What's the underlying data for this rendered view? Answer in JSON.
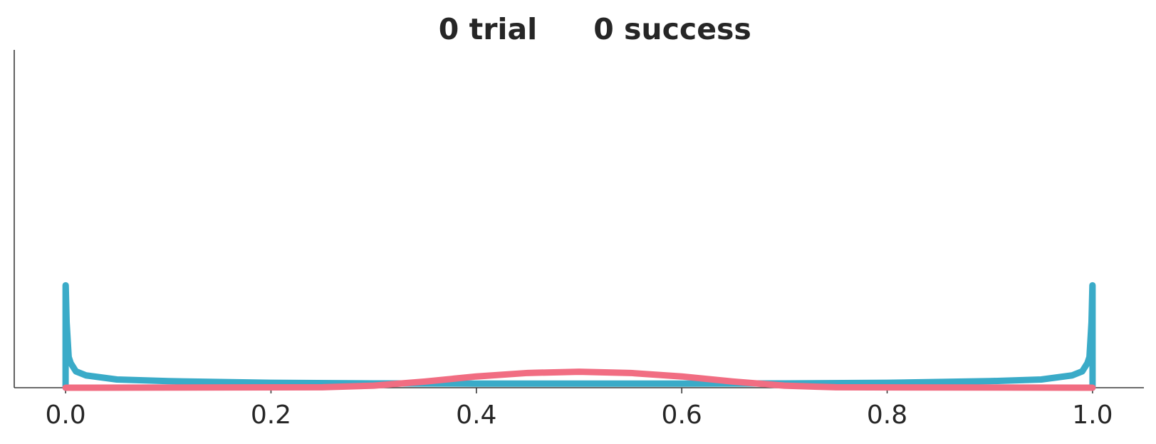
{
  "chart_data": {
    "type": "line",
    "title_parts": [
      "0 trial",
      "0 success"
    ],
    "xlabel": "",
    "ylabel": "",
    "xlim": [
      -0.05,
      1.05
    ],
    "ylim": [
      0,
      16.5
    ],
    "grid": false,
    "x_ticks": [
      0.0,
      0.2,
      0.4,
      0.6,
      0.8,
      1.0
    ],
    "x_tick_labels": [
      "0.0",
      "0.2",
      "0.4",
      "0.6",
      "0.8",
      "1.0"
    ],
    "series": [
      {
        "color": "#3aabc8",
        "distribution": "Beta(0.5, 0.5)",
        "x": [
          0.0,
          1e-05,
          0.0001,
          0.001,
          0.003,
          0.005,
          0.01,
          0.02,
          0.05,
          0.1,
          0.2,
          0.3,
          0.4,
          0.5,
          0.6,
          0.7,
          0.8,
          0.9,
          0.95,
          0.98,
          0.99,
          0.995,
          0.997,
          0.999,
          0.9999,
          0.99999,
          1.0
        ],
        "y": [
          0.0,
          5.0,
          5.0,
          3.2,
          1.5,
          1.2,
          0.8,
          0.6,
          0.4,
          0.32,
          0.24,
          0.21,
          0.2,
          0.2,
          0.2,
          0.21,
          0.24,
          0.32,
          0.4,
          0.6,
          0.8,
          1.2,
          1.5,
          3.2,
          5.0,
          5.0,
          0.0
        ]
      },
      {
        "color": "#f16d82",
        "distribution": "Beta(20, 20)",
        "x": [
          0.0,
          0.25,
          0.3,
          0.35,
          0.4,
          0.45,
          0.5,
          0.55,
          0.6,
          0.65,
          0.7,
          0.75,
          1.0
        ],
        "y": [
          0.0,
          0.02,
          0.1,
          0.3,
          0.55,
          0.72,
          0.78,
          0.72,
          0.55,
          0.3,
          0.1,
          0.02,
          0.0
        ]
      }
    ]
  }
}
